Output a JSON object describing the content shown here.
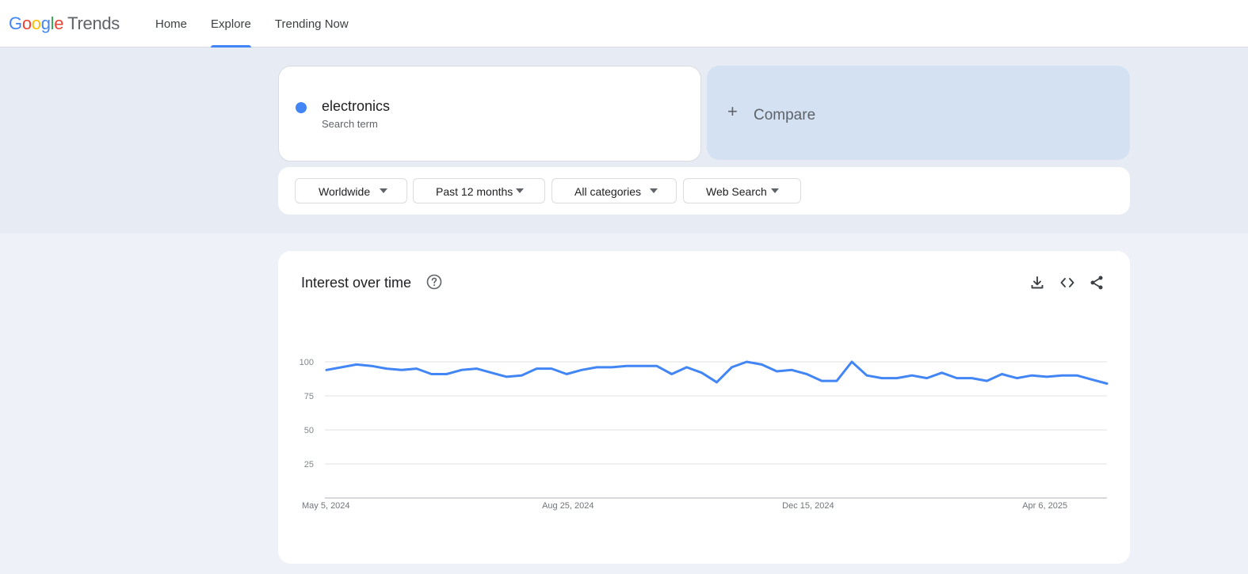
{
  "header": {
    "logo": {
      "google": "Google",
      "product": "Trends"
    },
    "nav": [
      {
        "label": "Home",
        "active": false
      },
      {
        "label": "Explore",
        "active": true
      },
      {
        "label": "Trending Now",
        "active": false
      }
    ]
  },
  "search": {
    "term": "electronics",
    "term_type": "Search term",
    "term_color": "#4285f4",
    "compare_label": "Compare"
  },
  "filters": {
    "region": "Worldwide",
    "time_range": "Past 12 months",
    "category": "All categories",
    "property": "Web Search"
  },
  "chart": {
    "title": "Interest over time"
  },
  "chart_data": {
    "type": "line",
    "title": "Interest over time",
    "xlabel": "",
    "ylabel": "",
    "ylim": [
      0,
      100
    ],
    "yticks": [
      25,
      50,
      75,
      100
    ],
    "x_tick_labels": [
      "May 5, 2024",
      "Aug 25, 2024",
      "Dec 15, 2024",
      "Apr 6, 2025"
    ],
    "x_tick_indices": [
      0,
      16,
      32,
      48
    ],
    "grid": true,
    "series": [
      {
        "name": "electronics",
        "color": "#4285f4",
        "values": [
          94,
          96,
          98,
          97,
          95,
          94,
          95,
          91,
          91,
          94,
          95,
          92,
          89,
          90,
          95,
          95,
          91,
          94,
          96,
          96,
          97,
          97,
          97,
          91,
          96,
          92,
          85,
          96,
          100,
          98,
          93,
          94,
          91,
          86,
          86,
          100,
          90,
          88,
          88,
          90,
          88,
          92,
          88,
          88,
          86,
          91,
          88,
          90,
          89,
          90,
          90,
          87,
          84
        ]
      }
    ]
  }
}
